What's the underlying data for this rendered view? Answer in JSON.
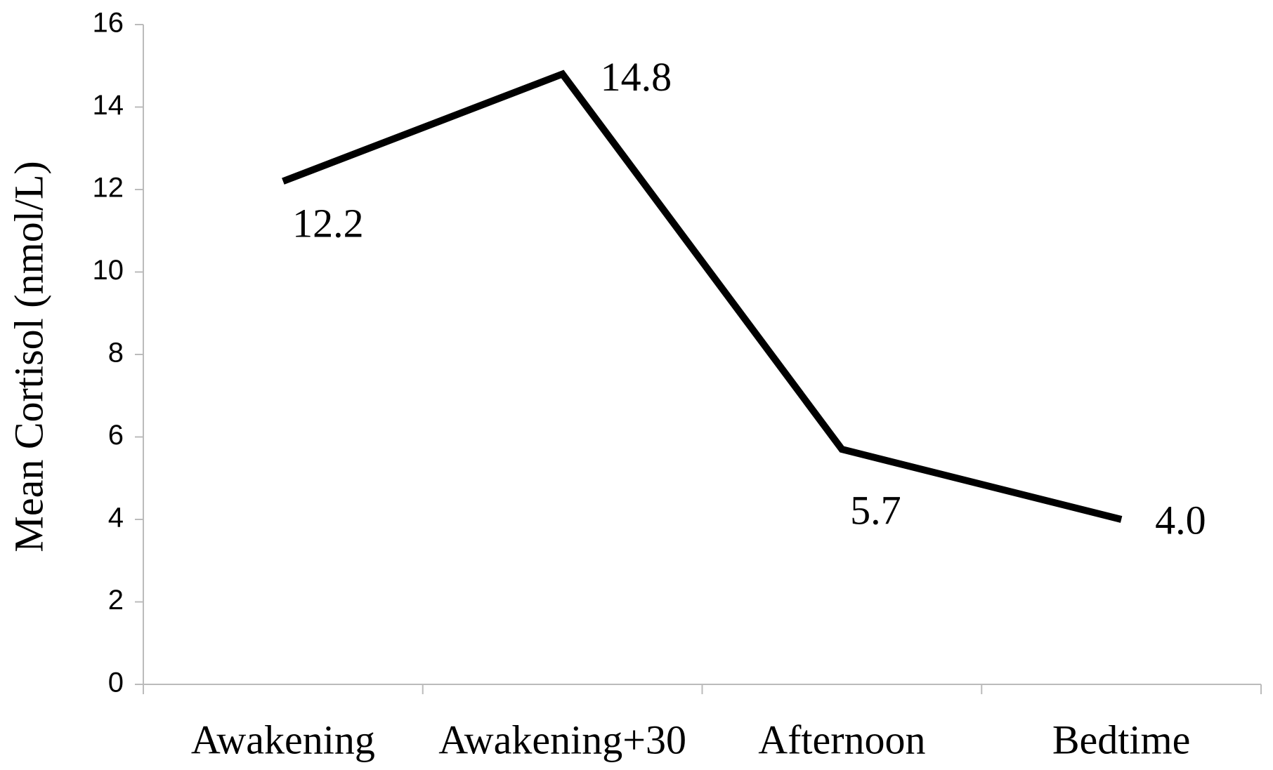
{
  "chart_data": {
    "type": "line",
    "y_label": "Mean Cortisol (nmol/L)",
    "categories": [
      "Awakening",
      "Awakening+30",
      "Afternoon",
      "Bedtime"
    ],
    "series": [
      {
        "color": "#000000",
        "values": [
          12.2,
          14.8,
          5.7,
          4.0
        ],
        "value_labels": [
          "12.2",
          "14.8",
          "5.7",
          "4.0"
        ]
      }
    ],
    "ylim": [
      0,
      16
    ],
    "yticks": [
      0,
      2,
      4,
      6,
      8,
      10,
      12,
      14,
      16
    ],
    "grid": false
  }
}
